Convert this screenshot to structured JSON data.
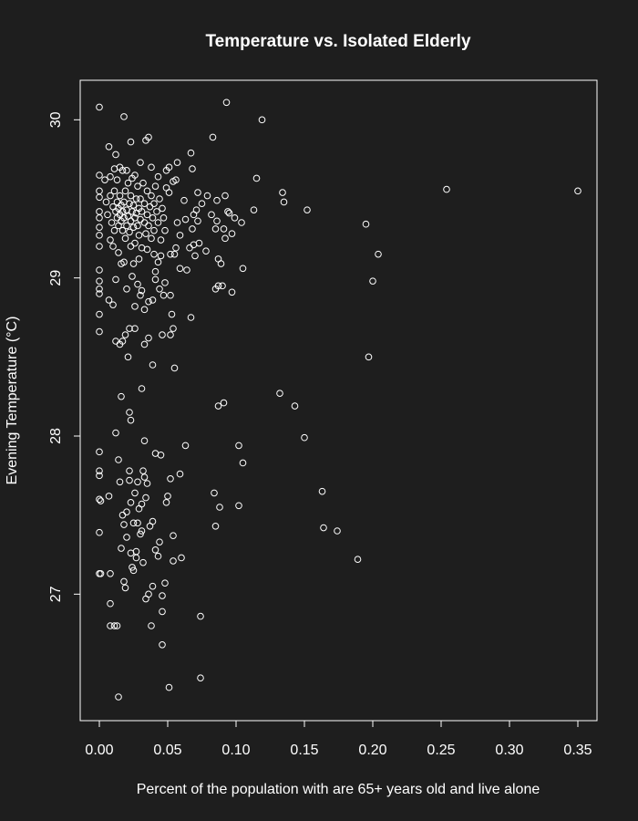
{
  "chart_data": {
    "type": "scatter",
    "title": "Temperature vs. Isolated Elderly",
    "xlabel": "Percent of the population with are 65+ years old and live alone",
    "ylabel": "Evening Temperature (°C)",
    "color": "#ffffff",
    "xlim": [
      -0.014,
      0.364
    ],
    "ylim": [
      26.2,
      30.25
    ],
    "xticks": [
      {
        "value": 0,
        "label": "0.00"
      },
      {
        "value": 0.05,
        "label": "0.05"
      },
      {
        "value": 0.1,
        "label": "0.10"
      },
      {
        "value": 0.15,
        "label": "0.15"
      },
      {
        "value": 0.2,
        "label": "0.20"
      },
      {
        "value": 0.25,
        "label": "0.25"
      },
      {
        "value": 0.3,
        "label": "0.30"
      },
      {
        "value": 0.35,
        "label": "0.35"
      }
    ],
    "yticks": [
      27,
      28,
      29,
      30
    ],
    "x": [
      0.35,
      0.254,
      0.204,
      0.2,
      0.197,
      0.195,
      0.189,
      0.174,
      0.164,
      0.163,
      0.15,
      0.143,
      0.132,
      0.134,
      0.135,
      0.152,
      0.119,
      0.093,
      0.115,
      0.113,
      0.104,
      0.105,
      0.102,
      0.105,
      0.102,
      0.091,
      0.087,
      0.084,
      0.088,
      0.085,
      0.074,
      0.074,
      0.051,
      0.014,
      0.046,
      0.063,
      0.059,
      0.052,
      0.06,
      0.054,
      0.054,
      0.048,
      0.046,
      0.046,
      0.038,
      0.034,
      0.036,
      0.039,
      0.011,
      0.013,
      0.008,
      0.008,
      0,
      0.001,
      0.008,
      0,
      0,
      0.001,
      0,
      0,
      0,
      0.007,
      0.012,
      0.014,
      0.015,
      0.016,
      0.017,
      0.018,
      0.018,
      0.019,
      0.02,
      0.02,
      0.022,
      0.022,
      0.023,
      0.023,
      0.024,
      0.025,
      0.025,
      0.026,
      0.027,
      0.027,
      0.028,
      0.028,
      0.029,
      0.03,
      0.031,
      0.031,
      0.032,
      0.032,
      0.033,
      0.033,
      0.034,
      0.035,
      0.037,
      0.039,
      0.041,
      0.041,
      0.043,
      0.044,
      0.045,
      0.049,
      0.05,
      0.016,
      0.022,
      0.023,
      0.031,
      0.039,
      0.055,
      0.046,
      0.052,
      0.054,
      0.053,
      0.067,
      0.047,
      0.052,
      0.044,
      0.048,
      0.039,
      0.036,
      0.033,
      0.03,
      0.026,
      0.022,
      0.019,
      0.017,
      0.012,
      0.015,
      0.021,
      0.026,
      0.033,
      0.036,
      0,
      0,
      0,
      0,
      0,
      0,
      0.007,
      0.01,
      0.012,
      0.016,
      0.018,
      0.02,
      0.024,
      0.028,
      0.031,
      0.041,
      0.041,
      0.043,
      0.045,
      0.052,
      0.055,
      0.056,
      0.059,
      0.064,
      0.07,
      0.073,
      0.078,
      0.085,
      0.087,
      0.09,
      0.097,
      0.087,
      0.089,
      0.091,
      0.092,
      0.094,
      0.095,
      0.097,
      0.099,
      0.085,
      0.086,
      0.086,
      0.082,
      0.079,
      0.075,
      0.072,
      0.071,
      0.069,
      0.068,
      0.067,
      0.062,
      0.066,
      0.072,
      0.068,
      0.069,
      0.063,
      0.059,
      0.057,
      0.056,
      0.054,
      0.051,
      0.049,
      0.049,
      0.051,
      0.057,
      0.083,
      0.092,
      0.036,
      0.034,
      0.023,
      0.018,
      0,
      0.007,
      0.012,
      0.015,
      0.017,
      0.013,
      0.008,
      0.004,
      0,
      0,
      0,
      0,
      0,
      0,
      0,
      0,
      0.005,
      0.006,
      0.008,
      0.009,
      0.01,
      0.011,
      0.011,
      0.012,
      0.013,
      0.013,
      0.014,
      0.014,
      0.015,
      0.015,
      0.016,
      0.016,
      0.017,
      0.017,
      0.018,
      0.018,
      0.019,
      0.019,
      0.02,
      0.02,
      0.021,
      0.021,
      0.022,
      0.022,
      0.023,
      0.023,
      0.024,
      0.024,
      0.025,
      0.025,
      0.026,
      0.026,
      0.027,
      0.027,
      0.028,
      0.028,
      0.029,
      0.029,
      0.03,
      0.03,
      0.031,
      0.031,
      0.032,
      0.033,
      0.033,
      0.034,
      0.035,
      0.035,
      0.036,
      0.037,
      0.038,
      0.038,
      0.039,
      0.04,
      0.04,
      0.041,
      0.042,
      0.043,
      0.044,
      0.045,
      0.046,
      0.047,
      0.048,
      0.043,
      0.038,
      0.03,
      0.026,
      0.02,
      0.011,
      0.008,
      0.01,
      0.014,
      0.023,
      0.029,
      0.035,
      0.04,
      0.025
    ],
    "values": [
      29.55,
      29.56,
      29.15,
      28.98,
      28.5,
      29.34,
      27.22,
      27.4,
      27.42,
      27.65,
      27.99,
      28.19,
      28.27,
      29.54,
      29.48,
      29.43,
      30,
      30.11,
      29.63,
      29.43,
      29.35,
      29.06,
      27.94,
      27.83,
      27.56,
      28.21,
      28.19,
      27.64,
      27.55,
      27.43,
      26.86,
      26.47,
      26.41,
      26.35,
      26.68,
      27.94,
      27.76,
      27.73,
      27.23,
      27.21,
      27.37,
      27.07,
      26.99,
      26.89,
      26.8,
      26.97,
      27,
      27.05,
      26.8,
      26.8,
      26.8,
      26.94,
      27.13,
      27.13,
      27.13,
      27.39,
      27.6,
      27.59,
      27.78,
      27.75,
      27.9,
      27.62,
      28.02,
      27.85,
      27.71,
      27.29,
      27.5,
      27.44,
      27.08,
      27.04,
      27.36,
      27.52,
      27.78,
      27.72,
      27.58,
      27.26,
      27.17,
      27.45,
      27.15,
      27.64,
      27.23,
      27.27,
      27.71,
      27.45,
      27.54,
      27.38,
      27.4,
      27.57,
      27.2,
      27.78,
      27.74,
      27.97,
      27.61,
      27.7,
      27.43,
      27.46,
      27.89,
      27.28,
      27.24,
      27.33,
      27.88,
      27.58,
      27.62,
      28.25,
      28.15,
      28.1,
      28.3,
      28.45,
      28.43,
      28.64,
      28.64,
      28.68,
      28.77,
      28.75,
      28.89,
      28.89,
      28.93,
      28.97,
      28.86,
      28.85,
      28.8,
      28.89,
      28.82,
      28.68,
      28.64,
      28.6,
      28.6,
      28.58,
      28.5,
      28.68,
      28.58,
      28.62,
      28.66,
      28.77,
      28.9,
      28.93,
      28.98,
      29.05,
      28.86,
      28.83,
      28.99,
      29.09,
      29.1,
      28.93,
      29.01,
      28.96,
      28.92,
      28.99,
      29.04,
      29.1,
      29.14,
      29.15,
      29.15,
      29.19,
      29.06,
      29.05,
      29.14,
      29.22,
      29.17,
      28.93,
      28.95,
      28.95,
      28.91,
      29.12,
      29.09,
      29.31,
      29.25,
      29.42,
      29.41,
      29.28,
      29.38,
      29.31,
      29.36,
      29.49,
      29.4,
      29.52,
      29.47,
      29.54,
      29.43,
      29.4,
      29.69,
      29.79,
      29.49,
      29.19,
      29.36,
      29.31,
      29.21,
      29.37,
      29.27,
      29.35,
      29.62,
      29.61,
      29.54,
      29.57,
      29.68,
      29.7,
      29.73,
      29.89,
      29.52,
      29.89,
      29.87,
      29.86,
      30.02,
      30.08,
      29.83,
      29.78,
      29.7,
      29.68,
      29.62,
      29.64,
      29.62,
      29.65,
      29.55,
      29.51,
      29.42,
      29.38,
      29.32,
      29.27,
      29.2,
      29.48,
      29.4,
      29.52,
      29.35,
      29.45,
      29.3,
      29.55,
      29.42,
      29.38,
      29.48,
      29.33,
      29.44,
      29.4,
      29.52,
      29.36,
      29.46,
      29.42,
      29.3,
      29.48,
      29.38,
      29.55,
      29.25,
      29.43,
      29.33,
      29.6,
      29.39,
      29.47,
      29.29,
      29.36,
      29.52,
      29.42,
      29.63,
      29.32,
      29.46,
      29.38,
      29.22,
      29.5,
      29.41,
      29.33,
      29.58,
      29.44,
      29.27,
      29.37,
      29.5,
      29.42,
      29.19,
      29.6,
      29.35,
      29.47,
      29.28,
      29.4,
      29.55,
      29.33,
      29.45,
      29.25,
      29.52,
      29.38,
      29.47,
      29.3,
      29.58,
      29.42,
      29.35,
      29.5,
      29.24,
      29.44,
      29.38,
      29.3,
      29.64,
      29.7,
      29.73,
      29.65,
      29.68,
      29.69,
      29.24,
      29.2,
      29.16,
      29.2,
      29.12,
      29.18,
      29.15,
      29.09
    ]
  }
}
